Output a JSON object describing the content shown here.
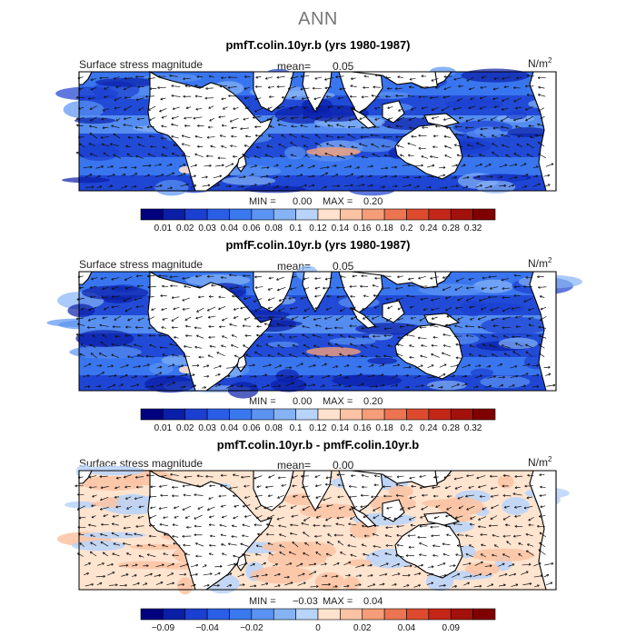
{
  "title": "ANN",
  "unit_base": "N/m",
  "unit_exp": "2",
  "panels": [
    {
      "title": "pmfT.colin.10yr.b (yrs 1980-1987)",
      "variable": "Surface stress magnitude",
      "mean_label": "mean=",
      "mean_value": "0.05",
      "min_label": "MIN =",
      "min_value": "0.00",
      "max_label": "MAX =",
      "max_value": "0.20",
      "colorbar": {
        "colors": [
          "#00007f",
          "#0a1ea8",
          "#1b3fd0",
          "#2a5ee6",
          "#3a78ee",
          "#5b93f2",
          "#86b3f6",
          "#b8d4fa",
          "#ffe2cd",
          "#fbc3a3",
          "#f59d78",
          "#ec7450",
          "#dd4a2e",
          "#c42618",
          "#a2110b",
          "#7f0000"
        ],
        "labels": [
          "0.01",
          "0.02",
          "0.03",
          "0.04",
          "0.06",
          "0.08",
          "0.1",
          "0.12",
          "0.14",
          "0.16",
          "0.18",
          "0.2",
          "0.24",
          "0.28",
          "0.32"
        ]
      }
    },
    {
      "title": "pmfF.colin.10yr.b (yrs 1980-1987)",
      "variable": "Surface stress magnitude",
      "mean_label": "mean=",
      "mean_value": "0.05",
      "min_label": "MIN =",
      "min_value": "0.00",
      "max_label": "MAX =",
      "max_value": "0.20",
      "colorbar": {
        "colors": [
          "#00007f",
          "#0a1ea8",
          "#1b3fd0",
          "#2a5ee6",
          "#3a78ee",
          "#5b93f2",
          "#86b3f6",
          "#b8d4fa",
          "#ffe2cd",
          "#fbc3a3",
          "#f59d78",
          "#ec7450",
          "#dd4a2e",
          "#c42618",
          "#a2110b",
          "#7f0000"
        ],
        "labels": [
          "0.01",
          "0.02",
          "0.03",
          "0.04",
          "0.06",
          "0.08",
          "0.1",
          "0.12",
          "0.14",
          "0.16",
          "0.18",
          "0.2",
          "0.24",
          "0.28",
          "0.32"
        ]
      }
    },
    {
      "title": "pmfT.colin.10yr.b - pmfF.colin.10yr.b",
      "variable": "Surface stress magnitude",
      "mean_label": "mean=",
      "mean_value": "0.00",
      "min_label": "MIN =",
      "min_value": "−0.03",
      "max_label": "MAX =",
      "max_value": "0.04",
      "colorbar": {
        "colors": [
          "#00007f",
          "#0a1ea8",
          "#1b3fd0",
          "#2a5ee6",
          "#3a78ee",
          "#5b93f2",
          "#86b3f6",
          "#b8d4fa",
          "#ffe2cd",
          "#fbc3a3",
          "#f59d78",
          "#ec7450",
          "#dd4a2e",
          "#c42618",
          "#a2110b",
          "#7f0000"
        ],
        "labels": [
          "−0.09",
          "",
          "−0.04",
          "",
          "−0.02",
          "",
          "",
          "0",
          "",
          "0.02",
          "",
          "0.04",
          "",
          "0.09",
          ""
        ]
      }
    }
  ]
}
